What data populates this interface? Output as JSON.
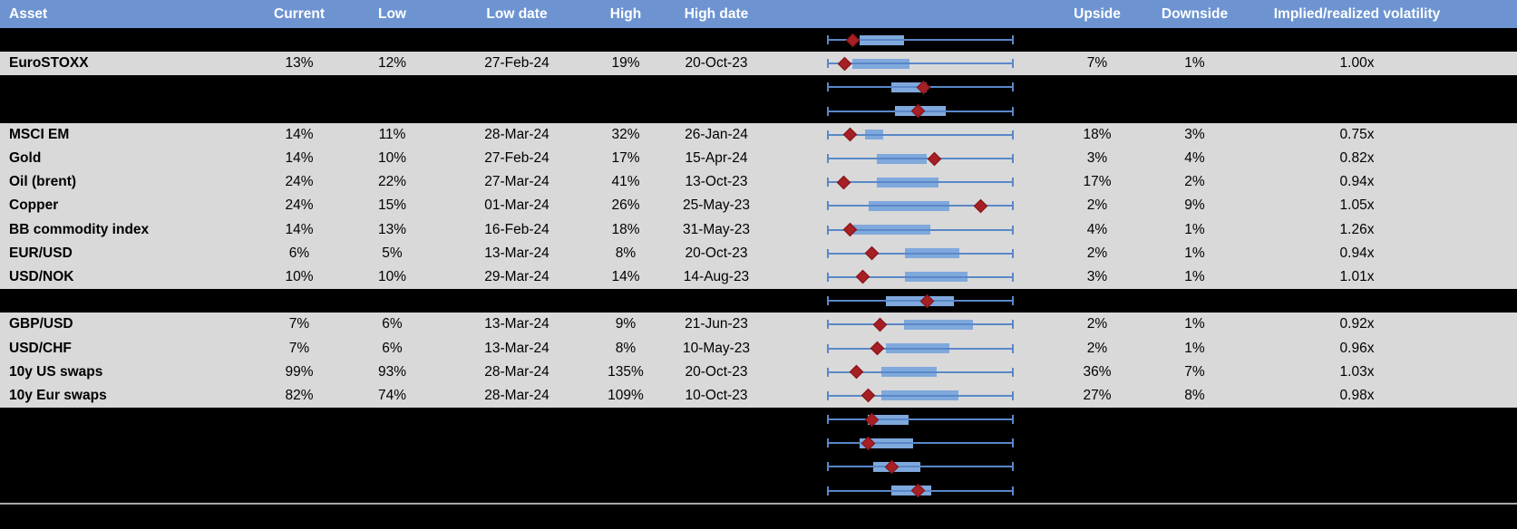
{
  "colors": {
    "header_bg": "#6d94d1",
    "header_text": "#ffffff",
    "data_row_bg": "#d9d9d9",
    "section_row_bg": "#000000",
    "text": "#000000",
    "whisker_blue": "#5a88c8",
    "box_fill_blue": "#7fa8dc",
    "marker_red": "#a61f24",
    "separator_gray": "#a8a8a8"
  },
  "chart_data": {
    "type": "table",
    "columns": [
      "Asset",
      "Current",
      "Low",
      "Low date",
      "High",
      "High date",
      "",
      "Upside",
      "Downside",
      "Implied/realized volatility"
    ],
    "boxplot_axis": {
      "min": 0,
      "max": 1,
      "note": "whiskers span full normalized low-high range; box = interquartile band; diamond = current level"
    },
    "rows": [
      {
        "kind": "boxplot",
        "boxplot": {
          "whiskers": [
            0,
            1
          ],
          "box": [
            0.17,
            0.41
          ],
          "marker": 0.135
        }
      },
      {
        "kind": "data",
        "asset": "EuroSTOXX",
        "current": "13%",
        "low": "12%",
        "low_date": "27-Feb-24",
        "high": "19%",
        "high_date": "20-Oct-23",
        "upside": "7%",
        "downside": "1%",
        "implied_realized": "1.00x",
        "boxplot": {
          "whiskers": [
            0,
            1
          ],
          "box": [
            0.13,
            0.44
          ],
          "marker": 0.09
        }
      },
      {
        "kind": "boxplot",
        "boxplot": {
          "whiskers": [
            0,
            1
          ],
          "box": [
            0.345,
            0.535
          ],
          "marker": 0.515
        }
      },
      {
        "kind": "boxplot",
        "boxplot": {
          "whiskers": [
            0,
            1
          ],
          "box": [
            0.365,
            0.635
          ],
          "marker": 0.49
        }
      },
      {
        "kind": "data",
        "asset": "MSCI EM",
        "current": "14%",
        "low": "11%",
        "low_date": "28-Mar-24",
        "high": "32%",
        "high_date": "26-Jan-24",
        "upside": "18%",
        "downside": "3%",
        "implied_realized": "0.75x",
        "boxplot": {
          "whiskers": [
            0,
            1
          ],
          "box": [
            0.2,
            0.3
          ],
          "marker": 0.12
        }
      },
      {
        "kind": "data",
        "asset": "Gold",
        "current": "14%",
        "low": "10%",
        "low_date": "27-Feb-24",
        "high": "17%",
        "high_date": "15-Apr-24",
        "upside": "3%",
        "downside": "4%",
        "implied_realized": "0.82x",
        "boxplot": {
          "whiskers": [
            0,
            1
          ],
          "box": [
            0.265,
            0.535
          ],
          "marker": 0.575
        }
      },
      {
        "kind": "data",
        "asset": "Oil (brent)",
        "current": "24%",
        "low": "22%",
        "low_date": "27-Mar-24",
        "high": "41%",
        "high_date": "13-Oct-23",
        "upside": "17%",
        "downside": "2%",
        "implied_realized": "0.94x",
        "boxplot": {
          "whiskers": [
            0,
            1
          ],
          "box": [
            0.265,
            0.6
          ],
          "marker": 0.085
        }
      },
      {
        "kind": "data",
        "asset": "Copper",
        "current": "24%",
        "low": "15%",
        "low_date": "01-Mar-24",
        "high": "26%",
        "high_date": "25-May-23",
        "upside": "2%",
        "downside": "9%",
        "implied_realized": "1.05x",
        "boxplot": {
          "whiskers": [
            0,
            1
          ],
          "box": [
            0.22,
            0.655
          ],
          "marker": 0.825
        }
      },
      {
        "kind": "data",
        "asset": "BB commodity index",
        "current": "14%",
        "low": "13%",
        "low_date": "16-Feb-24",
        "high": "18%",
        "high_date": "31-May-23",
        "upside": "4%",
        "downside": "1%",
        "implied_realized": "1.26x",
        "boxplot": {
          "whiskers": [
            0,
            1
          ],
          "box": [
            0.135,
            0.555
          ],
          "marker": 0.12
        }
      },
      {
        "kind": "data",
        "asset": "EUR/USD",
        "current": "6%",
        "low": "5%",
        "low_date": "13-Mar-24",
        "high": "8%",
        "high_date": "20-Oct-23",
        "upside": "2%",
        "downside": "1%",
        "implied_realized": "0.94x",
        "boxplot": {
          "whiskers": [
            0,
            1
          ],
          "box": [
            0.415,
            0.71
          ],
          "marker": 0.24
        }
      },
      {
        "kind": "data",
        "asset": "USD/NOK",
        "current": "10%",
        "low": "10%",
        "low_date": "29-Mar-24",
        "high": "14%",
        "high_date": "14-Aug-23",
        "upside": "3%",
        "downside": "1%",
        "implied_realized": "1.01x",
        "boxplot": {
          "whiskers": [
            0,
            1
          ],
          "box": [
            0.415,
            0.755
          ],
          "marker": 0.19
        }
      },
      {
        "kind": "boxplot",
        "boxplot": {
          "whiskers": [
            0,
            1
          ],
          "box": [
            0.315,
            0.68
          ],
          "marker": 0.535
        }
      },
      {
        "kind": "data",
        "asset": "GBP/USD",
        "current": "7%",
        "low": "6%",
        "low_date": "13-Mar-24",
        "high": "9%",
        "high_date": "21-Jun-23",
        "upside": "2%",
        "downside": "1%",
        "implied_realized": "0.92x",
        "boxplot": {
          "whiskers": [
            0,
            1
          ],
          "box": [
            0.41,
            0.785
          ],
          "marker": 0.28
        }
      },
      {
        "kind": "data",
        "asset": "USD/CHF",
        "current": "7%",
        "low": "6%",
        "low_date": "13-Mar-24",
        "high": "8%",
        "high_date": "10-May-23",
        "upside": "2%",
        "downside": "1%",
        "implied_realized": "0.96x",
        "boxplot": {
          "whiskers": [
            0,
            1
          ],
          "box": [
            0.315,
            0.655
          ],
          "marker": 0.265
        }
      },
      {
        "kind": "data",
        "asset": "10y US swaps",
        "current": "99%",
        "low": "93%",
        "low_date": "28-Mar-24",
        "high": "135%",
        "high_date": "20-Oct-23",
        "upside": "36%",
        "downside": "7%",
        "implied_realized": "1.03x",
        "boxplot": {
          "whiskers": [
            0,
            1
          ],
          "box": [
            0.29,
            0.59
          ],
          "marker": 0.155
        }
      },
      {
        "kind": "data",
        "asset": "10y Eur swaps",
        "current": "82%",
        "low": "74%",
        "low_date": "28-Mar-24",
        "high": "109%",
        "high_date": "10-Oct-23",
        "upside": "27%",
        "downside": "8%",
        "implied_realized": "0.98x",
        "boxplot": {
          "whiskers": [
            0,
            1
          ],
          "box": [
            0.29,
            0.705
          ],
          "marker": 0.22
        }
      },
      {
        "kind": "boxplot",
        "boxplot": {
          "whiskers": [
            0,
            1
          ],
          "box": [
            0.215,
            0.435
          ],
          "marker": 0.24
        }
      },
      {
        "kind": "boxplot",
        "boxplot": {
          "whiskers": [
            0,
            1
          ],
          "box": [
            0.17,
            0.46
          ],
          "marker": 0.22
        }
      },
      {
        "kind": "boxplot",
        "boxplot": {
          "whiskers": [
            0,
            1
          ],
          "box": [
            0.245,
            0.5
          ],
          "marker": 0.345
        }
      },
      {
        "kind": "boxplot",
        "boxplot": {
          "whiskers": [
            0,
            1
          ],
          "box": [
            0.345,
            0.56
          ],
          "marker": 0.49
        }
      }
    ]
  }
}
